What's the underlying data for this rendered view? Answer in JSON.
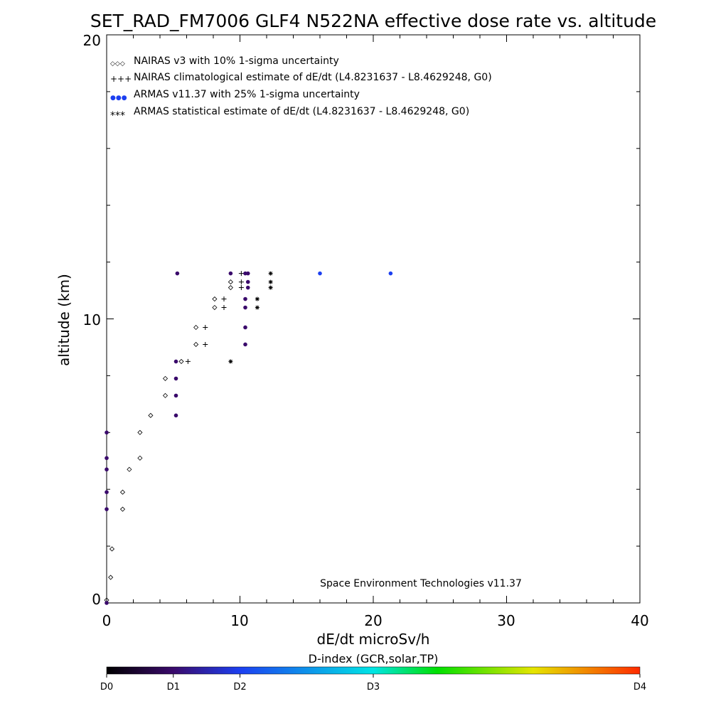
{
  "chart_data": {
    "type": "scatter",
    "title": "SET_RAD_FM7006  GLF4 N522NA effective dose rate vs. altitude",
    "xlabel": "dE/dt microSv/h",
    "ylabel": "altitude (km)",
    "xlim": [
      0,
      40
    ],
    "ylim": [
      0,
      20
    ],
    "x_tick_labels": [
      "0",
      "10",
      "20",
      "30",
      "40"
    ],
    "y_tick_labels": [
      "0",
      "10",
      "20"
    ],
    "grid": false,
    "legend_position": "top-left",
    "legend": [
      {
        "symbol": "diamond",
        "marker_text": "◇◇◇",
        "label": "NAIRAS v3 with 10% 1-sigma uncertainty"
      },
      {
        "symbol": "plus",
        "marker_text": "+++",
        "label": "NAIRAS climatological estimate of dE/dt (L4.8231637 - L8.4629248, G0)"
      },
      {
        "symbol": "dot",
        "marker_text": "●●●",
        "label": "ARMAS v11.37 with 25% 1-sigma uncertainty"
      },
      {
        "symbol": "asterisk",
        "marker_text": "***",
        "label": "ARMAS statistical estimate of dE/dt (L4.8231637 - L8.4629248, G0)"
      }
    ],
    "annotation": "Space Environment Technologies v11.37",
    "series": [
      {
        "name": "NAIRAS v3 with 10% 1-sigma uncertainty",
        "symbol": "diamond",
        "color": "#000000",
        "points": [
          [
            0.0,
            0.1
          ],
          [
            0.3,
            0.9
          ],
          [
            0.4,
            1.9
          ],
          [
            1.2,
            3.3
          ],
          [
            1.2,
            3.9
          ],
          [
            1.7,
            4.7
          ],
          [
            2.5,
            5.1
          ],
          [
            2.5,
            6.0
          ],
          [
            3.3,
            6.6
          ],
          [
            4.4,
            7.3
          ],
          [
            4.4,
            7.9
          ],
          [
            5.6,
            8.5
          ],
          [
            6.7,
            9.1
          ],
          [
            6.7,
            9.7
          ],
          [
            8.1,
            10.4
          ],
          [
            8.1,
            10.7
          ],
          [
            9.3,
            11.1
          ],
          [
            9.3,
            11.3
          ]
        ]
      },
      {
        "name": "NAIRAS climatological estimate of dE/dt (L4.8231637 - L8.4629248, G0)",
        "symbol": "plus",
        "color": "#000000",
        "points": [
          [
            6.1,
            8.5
          ],
          [
            7.4,
            9.1
          ],
          [
            7.4,
            9.7
          ],
          [
            8.8,
            10.4
          ],
          [
            8.8,
            10.7
          ],
          [
            10.1,
            11.1
          ],
          [
            10.1,
            11.3
          ],
          [
            10.1,
            11.6
          ]
        ]
      },
      {
        "name": "ARMAS v11.37 with 25% 1-sigma uncertainty",
        "symbol": "dot",
        "color": "#3a0a6b",
        "points": [
          [
            0.0,
            0.0
          ],
          [
            0.0,
            3.3
          ],
          [
            0.0,
            3.9
          ],
          [
            0.0,
            4.7
          ],
          [
            0.0,
            5.1
          ],
          [
            0.0,
            6.0
          ],
          [
            5.2,
            6.6
          ],
          [
            5.2,
            7.3
          ],
          [
            5.2,
            7.9
          ],
          [
            5.2,
            8.5
          ],
          [
            5.3,
            11.6
          ],
          [
            9.3,
            11.6
          ],
          [
            10.4,
            9.1
          ],
          [
            10.4,
            9.7
          ],
          [
            10.4,
            10.4
          ],
          [
            10.4,
            10.7
          ],
          [
            10.6,
            11.1
          ],
          [
            10.6,
            11.3
          ],
          [
            10.6,
            11.6
          ],
          [
            10.4,
            11.6
          ]
        ]
      },
      {
        "name": "ARMAS v11.37 high",
        "symbol": "dot",
        "color": "#1c3ff0",
        "points": [
          [
            16.0,
            11.6
          ],
          [
            21.3,
            11.6
          ]
        ]
      },
      {
        "name": "ARMAS statistical estimate of dE/dt (L4.8231637 - L8.4629248, G0)",
        "symbol": "asterisk",
        "color": "#000000",
        "points": [
          [
            9.3,
            8.5
          ],
          [
            11.3,
            10.4
          ],
          [
            11.3,
            10.7
          ],
          [
            12.3,
            11.1
          ],
          [
            12.3,
            11.3
          ],
          [
            12.3,
            11.6
          ]
        ]
      }
    ],
    "colorbar": {
      "title": "D-index (GCR,solar,TP)",
      "range": [
        0,
        40
      ],
      "tick_labels": [
        "D0",
        "D1",
        "D2",
        "D3",
        "D4"
      ],
      "tick_values": [
        0,
        5,
        10,
        20,
        40
      ],
      "colors": [
        "#000000",
        "#3a0a6b",
        "#1c3ff0",
        "#00e5e5",
        "#00e000",
        "#e5e500",
        "#ff2a00"
      ]
    }
  }
}
